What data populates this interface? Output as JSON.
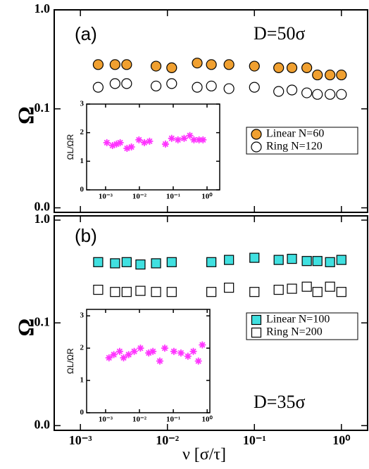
{
  "chart_data": [
    {
      "type": "scatter",
      "xscale": "log",
      "yscale": "log",
      "xlim": [
        0.0005,
        2.0
      ],
      "ylim": [
        0.009,
        1.0
      ],
      "xticks": [
        0.001,
        0.01,
        0.1,
        1
      ],
      "show_xtick_labels": false,
      "yticks": [
        {
          "value": 1,
          "label": "1.0"
        },
        {
          "value": 0.1,
          "label": "0.1"
        },
        {
          "value": 0.01,
          "label": "0.0"
        }
      ],
      "ylabel": "Ω",
      "annotations": [
        "(a)",
        "D=50σ"
      ],
      "legend": "center right",
      "x": [
        0.0016,
        0.0025,
        0.0034,
        0.0074,
        0.0112,
        0.022,
        0.032,
        0.051,
        0.1,
        0.19,
        0.27,
        0.4,
        0.53,
        0.74,
        1.0
      ],
      "series": [
        {
          "name": "Linear N=60",
          "color": "#f0a030",
          "marker": "circle",
          "values": [
            0.28,
            0.28,
            0.28,
            0.27,
            0.26,
            0.29,
            0.28,
            0.28,
            0.27,
            0.26,
            0.26,
            0.26,
            0.22,
            0.22,
            0.22
          ]
        },
        {
          "name": "Ring N=120",
          "color": "#ffffff",
          "marker": "circle",
          "values": [
            0.165,
            0.18,
            0.18,
            0.17,
            0.18,
            0.165,
            0.17,
            0.16,
            0.165,
            0.15,
            0.155,
            0.145,
            0.14,
            0.14,
            0.14
          ]
        }
      ]
    },
    {
      "type": "scatter",
      "xscale": "log",
      "yscale": "linear",
      "xlim": [
        0.000275,
        2.37
      ],
      "ylim": [
        0,
        3
      ],
      "xticks": [
        {
          "value": 0.001,
          "label": "10⁻³"
        },
        {
          "value": 0.01,
          "label": "10⁻²"
        },
        {
          "value": 0.1,
          "label": "10⁻¹"
        },
        {
          "value": 1,
          "label": "10⁰"
        }
      ],
      "yticks": [
        0,
        1,
        2,
        3
      ],
      "ylabel": "ΩL/ΩR",
      "color": "#ff33ff",
      "marker": "star",
      "x": [
        0.00109,
        0.0016,
        0.0021,
        0.0027,
        0.0043,
        0.0058,
        0.0097,
        0.014,
        0.02,
        0.059,
        0.09,
        0.138,
        0.21,
        0.31,
        0.41,
        0.58,
        0.76
      ],
      "values": [
        1.65,
        1.55,
        1.6,
        1.65,
        1.45,
        1.5,
        1.75,
        1.65,
        1.7,
        1.6,
        1.8,
        1.75,
        1.8,
        1.9,
        1.75,
        1.75,
        1.75
      ]
    },
    {
      "type": "scatter",
      "xscale": "log",
      "yscale": "log",
      "xlim": [
        0.0005,
        2.0
      ],
      "ylim": [
        0.009,
        1.1
      ],
      "xticks": [
        {
          "value": 0.001,
          "label": "10⁻³"
        },
        {
          "value": 0.01,
          "label": "10⁻²"
        },
        {
          "value": 0.1,
          "label": "10⁻¹"
        },
        {
          "value": 1,
          "label": "10⁰"
        }
      ],
      "yticks": [
        {
          "value": 1,
          "label": "1.0"
        },
        {
          "value": 0.1,
          "label": "0.1"
        },
        {
          "value": 0.01,
          "label": "0.0"
        }
      ],
      "ylabel": "Ω",
      "xlabel": "ν [σ/τ]",
      "annotations": [
        "(b)",
        "D=35σ"
      ],
      "legend": "center right",
      "x": [
        0.0016,
        0.0025,
        0.0034,
        0.0049,
        0.0074,
        0.0112,
        0.032,
        0.051,
        0.1,
        0.19,
        0.27,
        0.4,
        0.53,
        0.74,
        1.0
      ],
      "series": [
        {
          "name": "Linear N=100",
          "color": "#40e0e0",
          "marker": "square",
          "values": [
            0.39,
            0.38,
            0.39,
            0.37,
            0.38,
            0.39,
            0.39,
            0.41,
            0.43,
            0.41,
            0.42,
            0.4,
            0.4,
            0.39,
            0.41
          ]
        },
        {
          "name": "Ring N=200",
          "color": "#ffffff",
          "marker": "square",
          "values": [
            0.21,
            0.2,
            0.2,
            0.205,
            0.2,
            0.2,
            0.2,
            0.22,
            0.2,
            0.21,
            0.215,
            0.225,
            0.2,
            0.225,
            0.2
          ]
        }
      ]
    },
    {
      "type": "scatter",
      "xscale": "log",
      "yscale": "linear",
      "xlim": [
        0.000275,
        1.2
      ],
      "ylim": [
        0,
        3.2
      ],
      "xticks": [
        {
          "value": 0.001,
          "label": "10⁻³"
        },
        {
          "value": 0.01,
          "label": "10⁻²"
        },
        {
          "value": 0.1,
          "label": "10⁻¹"
        },
        {
          "value": 1,
          "label": "10⁰"
        }
      ],
      "yticks": [
        0,
        1,
        2,
        3
      ],
      "ylabel": "ΩL/ΩR",
      "color": "#ff33ff",
      "marker": "star",
      "x": [
        0.00126,
        0.00175,
        0.0026,
        0.0034,
        0.0048,
        0.007,
        0.0107,
        0.0188,
        0.025,
        0.04,
        0.056,
        0.104,
        0.168,
        0.27,
        0.39,
        0.55,
        0.72
      ],
      "values": [
        1.7,
        1.8,
        1.9,
        1.7,
        1.8,
        1.9,
        2.0,
        1.85,
        1.9,
        1.6,
        2.0,
        1.9,
        1.85,
        1.75,
        1.9,
        1.6,
        2.1
      ]
    }
  ]
}
